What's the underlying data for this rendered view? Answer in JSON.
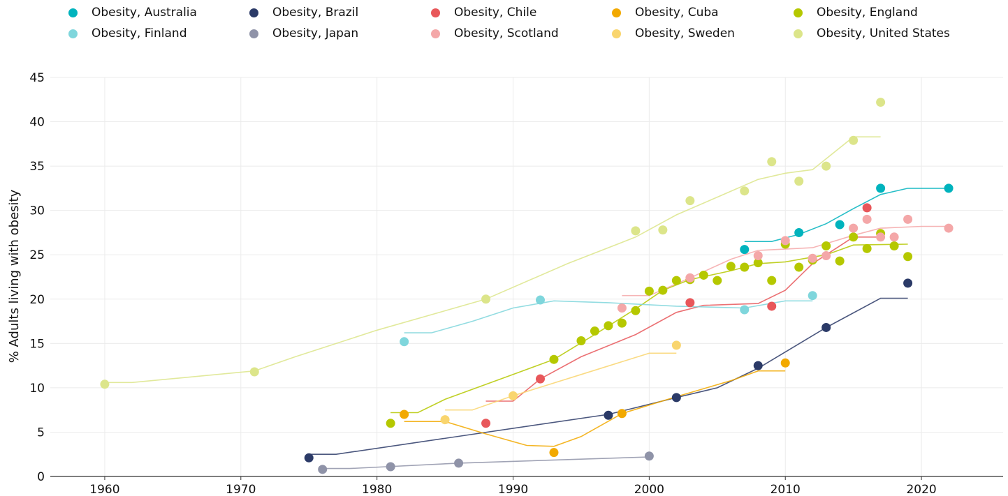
{
  "chart_data": {
    "type": "scatter",
    "title": "",
    "xlabel": "",
    "ylabel": "% Adults living with obesity",
    "xlim": [
      1956,
      2026
    ],
    "ylim": [
      0,
      45
    ],
    "x_ticks": [
      1960,
      1970,
      1980,
      1990,
      2000,
      2010,
      2020
    ],
    "y_ticks": [
      0,
      5,
      10,
      15,
      20,
      25,
      30,
      35,
      40,
      45
    ],
    "grid": true,
    "legend_position": "top",
    "series": [
      {
        "name": "Obesity, Australia",
        "color": "#00b3bd",
        "points": [
          [
            2007,
            25.6
          ],
          [
            2011,
            27.5
          ],
          [
            2014,
            28.4
          ],
          [
            2017,
            32.5
          ],
          [
            2022,
            32.5
          ]
        ],
        "trend": [
          [
            2007,
            26.5
          ],
          [
            2009,
            26.5
          ],
          [
            2011,
            27.3
          ],
          [
            2013,
            28.5
          ],
          [
            2015,
            30.2
          ],
          [
            2017,
            31.8
          ],
          [
            2019,
            32.5
          ],
          [
            2022,
            32.5
          ]
        ]
      },
      {
        "name": "Obesity, Brazil",
        "color": "#2b3a67",
        "points": [
          [
            1975,
            2.1
          ],
          [
            1997,
            6.9
          ],
          [
            2002,
            8.9
          ],
          [
            2008,
            12.5
          ],
          [
            2013,
            16.8
          ],
          [
            2019,
            21.8
          ]
        ],
        "trend": [
          [
            1975,
            2.5
          ],
          [
            1977,
            2.5
          ],
          [
            1997,
            7.0
          ],
          [
            2002,
            8.9
          ],
          [
            2005,
            10.0
          ],
          [
            2008,
            12.2
          ],
          [
            2013,
            16.8
          ],
          [
            2017,
            20.1
          ],
          [
            2019,
            20.1
          ]
        ]
      },
      {
        "name": "Obesity, Chile",
        "color": "#e8575a",
        "points": [
          [
            1988,
            6.0
          ],
          [
            1992,
            11.0
          ],
          [
            2003,
            19.6
          ],
          [
            2009,
            19.2
          ],
          [
            2016,
            30.3
          ]
        ],
        "trend": [
          [
            1988,
            8.5
          ],
          [
            1990,
            8.5
          ],
          [
            1992,
            11.0
          ],
          [
            1995,
            13.5
          ],
          [
            1999,
            16.0
          ],
          [
            2002,
            18.5
          ],
          [
            2004,
            19.3
          ],
          [
            2008,
            19.5
          ],
          [
            2010,
            21.0
          ],
          [
            2012,
            24.0
          ],
          [
            2015,
            27.0
          ],
          [
            2017,
            27.0
          ]
        ]
      },
      {
        "name": "Obesity, Cuba",
        "color": "#f2a900",
        "points": [
          [
            1982,
            7.0
          ],
          [
            1993,
            2.7
          ],
          [
            1998,
            7.1
          ],
          [
            2010,
            12.8
          ]
        ],
        "trend": [
          [
            1982,
            6.2
          ],
          [
            1985,
            6.2
          ],
          [
            1988,
            4.8
          ],
          [
            1991,
            3.5
          ],
          [
            1993,
            3.4
          ],
          [
            1995,
            4.5
          ],
          [
            1998,
            7.1
          ],
          [
            2002,
            9.0
          ],
          [
            2006,
            10.8
          ],
          [
            2008,
            11.9
          ],
          [
            2010,
            11.9
          ]
        ]
      },
      {
        "name": "Obesity, England",
        "color": "#b5c800",
        "points": [
          [
            1981,
            6.0
          ],
          [
            1993,
            13.2
          ],
          [
            1995,
            15.3
          ],
          [
            1996,
            16.4
          ],
          [
            1997,
            17.0
          ],
          [
            1998,
            17.3
          ],
          [
            1999,
            18.7
          ],
          [
            2000,
            20.9
          ],
          [
            2001,
            21.0
          ],
          [
            2002,
            22.1
          ],
          [
            2003,
            22.2
          ],
          [
            2004,
            22.7
          ],
          [
            2005,
            22.1
          ],
          [
            2006,
            23.7
          ],
          [
            2007,
            23.6
          ],
          [
            2008,
            24.1
          ],
          [
            2009,
            22.1
          ],
          [
            2010,
            26.2
          ],
          [
            2011,
            23.6
          ],
          [
            2012,
            24.4
          ],
          [
            2013,
            26.0
          ],
          [
            2014,
            24.3
          ],
          [
            2015,
            27.0
          ],
          [
            2016,
            25.7
          ],
          [
            2017,
            27.4
          ],
          [
            2018,
            26.0
          ],
          [
            2019,
            24.8
          ]
        ],
        "trend": [
          [
            1981,
            7.2
          ],
          [
            1983,
            7.2
          ],
          [
            1985,
            8.7
          ],
          [
            1990,
            11.5
          ],
          [
            1993,
            13.2
          ],
          [
            1996,
            16.0
          ],
          [
            1999,
            18.9
          ],
          [
            2001,
            21.0
          ],
          [
            2003,
            22.2
          ],
          [
            2006,
            23.2
          ],
          [
            2008,
            24.0
          ],
          [
            2010,
            24.2
          ],
          [
            2013,
            25.0
          ],
          [
            2015,
            26.1
          ],
          [
            2019,
            26.2
          ]
        ]
      },
      {
        "name": "Obesity, Finland",
        "color": "#7fd6dc",
        "points": [
          [
            1982,
            15.2
          ],
          [
            1992,
            19.9
          ],
          [
            2007,
            18.8
          ],
          [
            2012,
            20.4
          ]
        ],
        "trend": [
          [
            1982,
            16.2
          ],
          [
            1984,
            16.2
          ],
          [
            1987,
            17.5
          ],
          [
            1990,
            19.0
          ],
          [
            1993,
            19.8
          ],
          [
            1997,
            19.6
          ],
          [
            2002,
            19.2
          ],
          [
            2007,
            19.0
          ],
          [
            2010,
            19.8
          ],
          [
            2012,
            19.8
          ]
        ]
      },
      {
        "name": "Obesity, Japan",
        "color": "#8f93a8",
        "points": [
          [
            1976,
            0.8
          ],
          [
            1981,
            1.1
          ],
          [
            1986,
            1.5
          ],
          [
            2000,
            2.3
          ]
        ],
        "trend": [
          [
            1976,
            0.9
          ],
          [
            1978,
            0.9
          ],
          [
            1986,
            1.5
          ],
          [
            2000,
            2.2
          ]
        ]
      },
      {
        "name": "Obesity, Scotland",
        "color": "#f4a7a8",
        "points": [
          [
            1998,
            19.0
          ],
          [
            2003,
            22.4
          ],
          [
            2008,
            24.9
          ],
          [
            2010,
            26.6
          ],
          [
            2012,
            24.6
          ],
          [
            2013,
            24.9
          ],
          [
            2015,
            28.0
          ],
          [
            2016,
            29.0
          ],
          [
            2017,
            27.0
          ],
          [
            2018,
            27.0
          ],
          [
            2019,
            29.0
          ],
          [
            2022,
            28.0
          ]
        ],
        "trend": [
          [
            1998,
            20.4
          ],
          [
            2000,
            20.4
          ],
          [
            2003,
            22.4
          ],
          [
            2006,
            24.5
          ],
          [
            2008,
            25.5
          ],
          [
            2012,
            25.8
          ],
          [
            2015,
            27.2
          ],
          [
            2017,
            28.0
          ],
          [
            2020,
            28.2
          ],
          [
            2022,
            28.2
          ]
        ]
      },
      {
        "name": "Obesity, Sweden",
        "color": "#f9d56e",
        "points": [
          [
            1985,
            6.4
          ],
          [
            1990,
            9.1
          ],
          [
            2002,
            14.8
          ]
        ],
        "trend": [
          [
            1985,
            7.5
          ],
          [
            1987,
            7.5
          ],
          [
            1990,
            9.1
          ],
          [
            1995,
            11.5
          ],
          [
            2000,
            13.9
          ],
          [
            2002,
            13.9
          ]
        ]
      },
      {
        "name": "Obesity, United States",
        "color": "#dce58a",
        "points": [
          [
            1960,
            10.4
          ],
          [
            1971,
            11.8
          ],
          [
            1988,
            20.0
          ],
          [
            1999,
            27.7
          ],
          [
            2001,
            27.8
          ],
          [
            2003,
            31.1
          ],
          [
            2007,
            32.2
          ],
          [
            2009,
            35.5
          ],
          [
            2011,
            33.3
          ],
          [
            2013,
            35.0
          ],
          [
            2015,
            37.9
          ],
          [
            2017,
            42.2
          ]
        ],
        "trend": [
          [
            1960,
            10.6
          ],
          [
            1962,
            10.6
          ],
          [
            1971,
            11.9
          ],
          [
            1974,
            13.5
          ],
          [
            1980,
            16.5
          ],
          [
            1988,
            20.0
          ],
          [
            1994,
            24.0
          ],
          [
            1999,
            27.0
          ],
          [
            2002,
            29.5
          ],
          [
            2005,
            31.5
          ],
          [
            2008,
            33.5
          ],
          [
            2010,
            34.2
          ],
          [
            2012,
            34.6
          ],
          [
            2015,
            38.3
          ],
          [
            2017,
            38.3
          ]
        ]
      }
    ]
  }
}
